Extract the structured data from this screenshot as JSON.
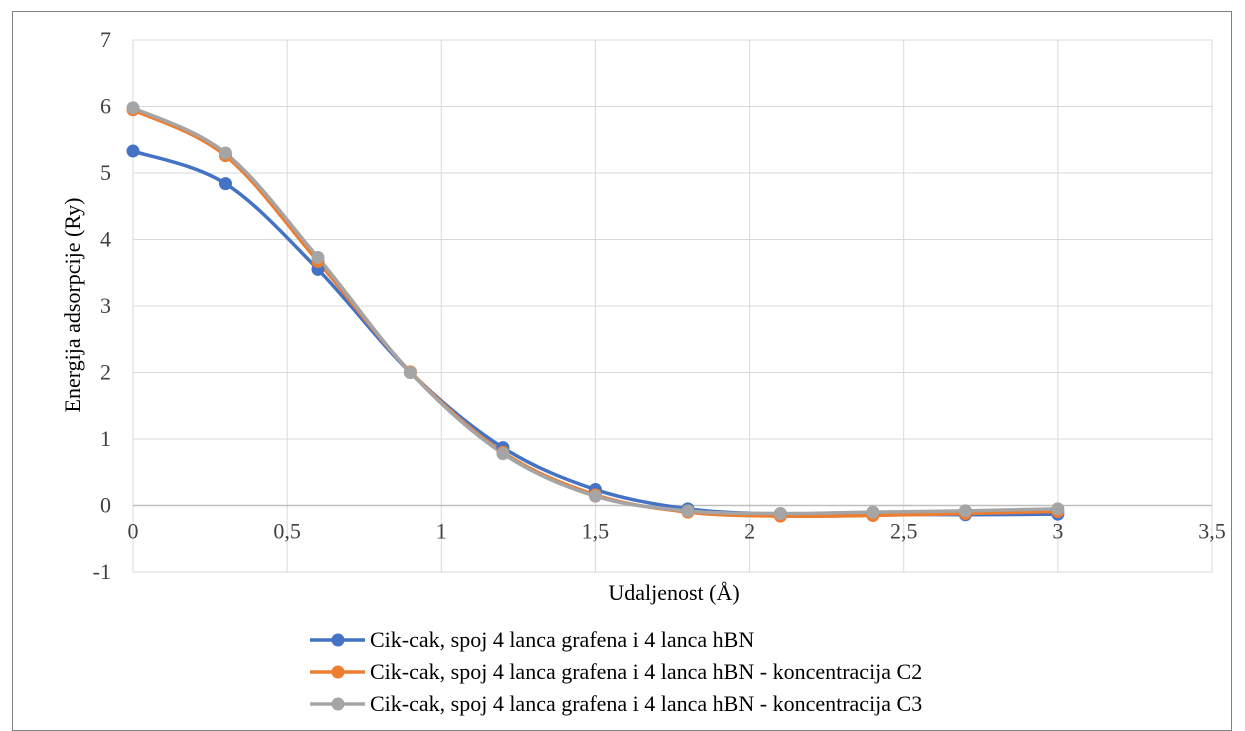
{
  "chart_data": {
    "type": "line",
    "smooth": true,
    "title": "",
    "xlabel": "Udaljenost (Å)",
    "ylabel": "Energija adsorpcije (Ry)",
    "xlim": [
      0,
      3.5
    ],
    "ylim": [
      -1,
      7
    ],
    "x_ticks": [
      "0",
      "0,5",
      "1",
      "1,5",
      "2",
      "2,5",
      "3",
      "3,5"
    ],
    "y_ticks": [
      "-1",
      "0",
      "1",
      "2",
      "3",
      "4",
      "5",
      "6",
      "7"
    ],
    "grid": true,
    "legend_position": "bottom",
    "x": [
      0,
      0.3,
      0.6,
      0.9,
      1.2,
      1.5,
      1.8,
      2.1,
      2.4,
      2.7,
      3.0
    ],
    "series": [
      {
        "name": "Cik-cak, spoj 4 lanca grafena i 4 lanca hBN",
        "color": "#4472c4",
        "values": [
          5.33,
          4.84,
          3.55,
          2.0,
          0.87,
          0.24,
          -0.05,
          -0.13,
          -0.13,
          -0.14,
          -0.13
        ]
      },
      {
        "name": "Cik-cak, spoj 4 lanca grafena i 4 lanca hBN - koncentracija C2",
        "color": "#ed7d31",
        "values": [
          5.95,
          5.26,
          3.67,
          2.01,
          0.8,
          0.16,
          -0.1,
          -0.16,
          -0.15,
          -0.12,
          -0.09
        ]
      },
      {
        "name": "Cik-cak, spoj 4 lanca grafena i 4 lanca hBN - koncentracija C3",
        "color": "#a5a5a5",
        "values": [
          5.98,
          5.3,
          3.73,
          2.0,
          0.78,
          0.14,
          -0.08,
          -0.12,
          -0.1,
          -0.08,
          -0.05
        ]
      }
    ]
  }
}
